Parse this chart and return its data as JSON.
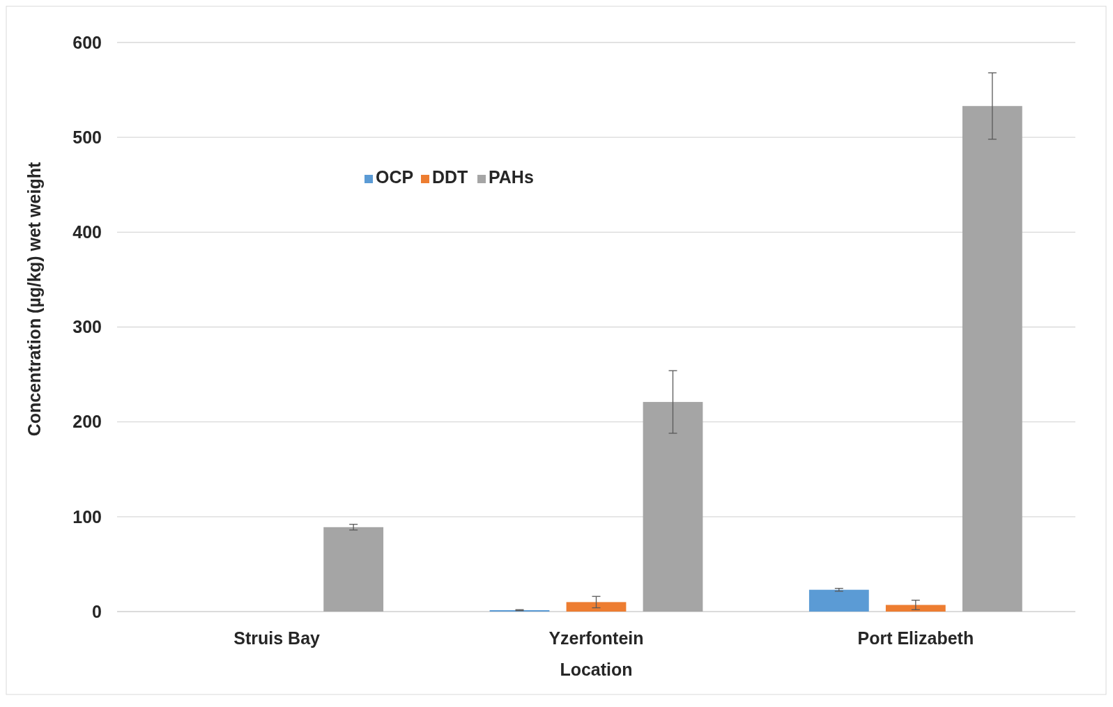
{
  "chart_data": {
    "type": "bar",
    "xlabel": "Location",
    "ylabel": "Concentration (µg/kg) wet  weight",
    "categories": [
      "Struis Bay",
      "Yzerfontein",
      "Port Elizabeth"
    ],
    "series": [
      {
        "name": "OCP",
        "color": "#5b9bd5",
        "values": [
          null,
          1.5,
          23
        ],
        "errors": [
          null,
          0.5,
          1.5
        ]
      },
      {
        "name": "DDT",
        "color": "#ed7d31",
        "values": [
          null,
          10,
          7
        ],
        "errors": [
          null,
          6,
          5
        ]
      },
      {
        "name": "PAHs",
        "color": "#a5a5a5",
        "values": [
          89,
          221,
          533
        ],
        "errors": [
          3,
          33,
          35
        ]
      }
    ],
    "ylim": [
      0,
      600
    ],
    "yticks": [
      0,
      100,
      200,
      300,
      400,
      500,
      600
    ],
    "grid": "y",
    "legend": "top left"
  }
}
